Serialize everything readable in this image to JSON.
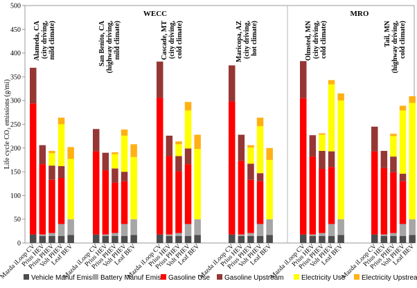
{
  "chart_data": {
    "type": "bar",
    "stacked": true,
    "title": "",
    "xlabel": "",
    "ylabel": "Life cycle CO₂ emissions (g/mi)",
    "ylim": [
      0,
      500
    ],
    "yticks": [
      0,
      50,
      100,
      150,
      200,
      250,
      300,
      350,
      400,
      450,
      500
    ],
    "grid": false,
    "legend_position": "bottom",
    "vehicles": [
      "Mazda iLoop CV",
      "Prius HEV",
      "Prius PHEV",
      "Volt PHEV",
      "Leaf BEV"
    ],
    "regions": [
      {
        "name": "WECC",
        "groups": [
          0,
          1,
          2,
          3
        ]
      },
      {
        "name": "MRO",
        "groups": [
          4,
          5
        ]
      }
    ],
    "series": [
      {
        "name": "Vehicle Manuf Emiss",
        "color": "#4d4d4d"
      },
      {
        "name": "Battery Manuf Emiss",
        "color": "#a6a6a6"
      },
      {
        "name": "Gasoline Use",
        "color": "#ff0000"
      },
      {
        "name": "Gasoline Upstream",
        "color": "#953735"
      },
      {
        "name": "Electricity Use",
        "color": "#ffff00"
      },
      {
        "name": "Electricity Upstream",
        "color": "#ffb114"
      }
    ],
    "groups": [
      {
        "label": "Alameda, CA (city driving, mild climate)",
        "values": [
          [
            18,
            0,
            276,
            75,
            0,
            0
          ],
          [
            15,
            3,
            148,
            40,
            0,
            0
          ],
          [
            15,
            6,
            112,
            30,
            26,
            5
          ],
          [
            15,
            25,
            97,
            25,
            88,
            14
          ],
          [
            17,
            33,
            0,
            0,
            127,
            25
          ]
        ]
      },
      {
        "label": "San Benito, CA (highway driving, mild climate)",
        "values": [
          [
            18,
            0,
            175,
            47,
            0,
            0
          ],
          [
            15,
            3,
            135,
            37,
            0,
            0
          ],
          [
            15,
            6,
            106,
            30,
            30,
            4
          ],
          [
            15,
            25,
            90,
            20,
            76,
            13
          ],
          [
            17,
            33,
            0,
            0,
            131,
            27
          ]
        ]
      },
      {
        "label": "Cascade, MT (city driving, cold climate)",
        "values": [
          [
            18,
            0,
            288,
            76,
            0,
            0
          ],
          [
            15,
            3,
            165,
            43,
            0,
            0
          ],
          [
            15,
            6,
            130,
            32,
            25,
            6
          ],
          [
            15,
            25,
            126,
            33,
            80,
            18
          ],
          [
            17,
            33,
            0,
            0,
            148,
            30
          ]
        ]
      },
      {
        "label": "Maricopa, AZ (city driving, hot climate)",
        "values": [
          [
            18,
            0,
            280,
            76,
            0,
            0
          ],
          [
            15,
            3,
            155,
            55,
            0,
            0
          ],
          [
            15,
            6,
            112,
            34,
            34,
            5
          ],
          [
            15,
            25,
            90,
            17,
            99,
            18
          ],
          [
            17,
            33,
            0,
            0,
            125,
            25
          ]
        ]
      },
      {
        "label": "Olmsted, MN (city driving, cold climate)",
        "values": [
          [
            18,
            0,
            287,
            78,
            0,
            0
          ],
          [
            15,
            3,
            164,
            45,
            0,
            0
          ],
          [
            15,
            6,
            135,
            38,
            34,
            3
          ],
          [
            15,
            25,
            120,
            33,
            141,
            9
          ],
          [
            17,
            33,
            0,
            0,
            250,
            15
          ]
        ]
      },
      {
        "label": "Tail, MN (highway driving, cold climate)",
        "values": [
          [
            18,
            0,
            175,
            52,
            0,
            0
          ],
          [
            15,
            3,
            140,
            36,
            0,
            0
          ],
          [
            15,
            6,
            128,
            33,
            43,
            5
          ],
          [
            15,
            25,
            90,
            16,
            133,
            10
          ],
          [
            17,
            33,
            0,
            0,
            245,
            14
          ]
        ]
      }
    ]
  }
}
